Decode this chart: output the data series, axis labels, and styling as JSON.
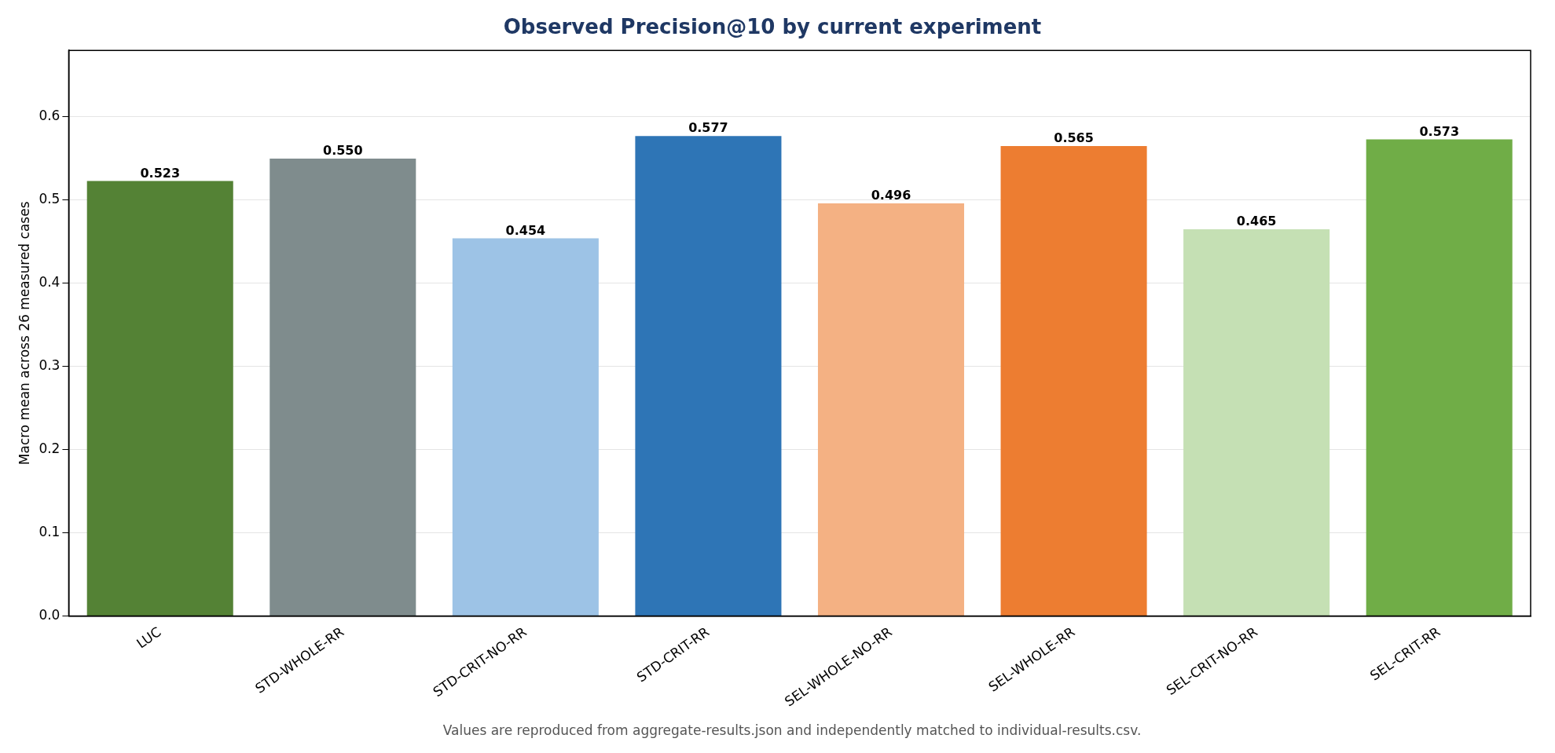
{
  "chart_data": {
    "type": "bar",
    "title": "Observed Precision@10 by current experiment",
    "ylabel": "Macro mean across 26 measured cases",
    "categories": [
      "LUC",
      "STD-WHOLE-RR",
      "STD-CRIT-NO-RR",
      "STD-CRIT-RR",
      "SEL-WHOLE-NO-RR",
      "SEL-WHOLE-RR",
      "SEL-CRIT-NO-RR",
      "SEL-CRIT-RR"
    ],
    "values": [
      0.523,
      0.55,
      0.454,
      0.577,
      0.496,
      0.565,
      0.465,
      0.573
    ],
    "colors": [
      "#548235",
      "#7f8c8d",
      "#9dc3e6",
      "#2e75b6",
      "#f4b183",
      "#ed7d31",
      "#c5e0b4",
      "#70ad47"
    ],
    "value_labels": [
      "0.523",
      "0.550",
      "0.454",
      "0.577",
      "0.496",
      "0.565",
      "0.465",
      "0.573"
    ],
    "ylim": [
      0,
      0.68
    ],
    "yticks": [
      {
        "value": 0,
        "label": "0.0"
      },
      0.1,
      0.2,
      0.3,
      0.4,
      0.5,
      0.6
    ],
    "grid": "y",
    "legend": false,
    "annotations": [
      "Values are reproduced from aggregate-results.json and independently matched to individual-results.csv."
    ]
  }
}
